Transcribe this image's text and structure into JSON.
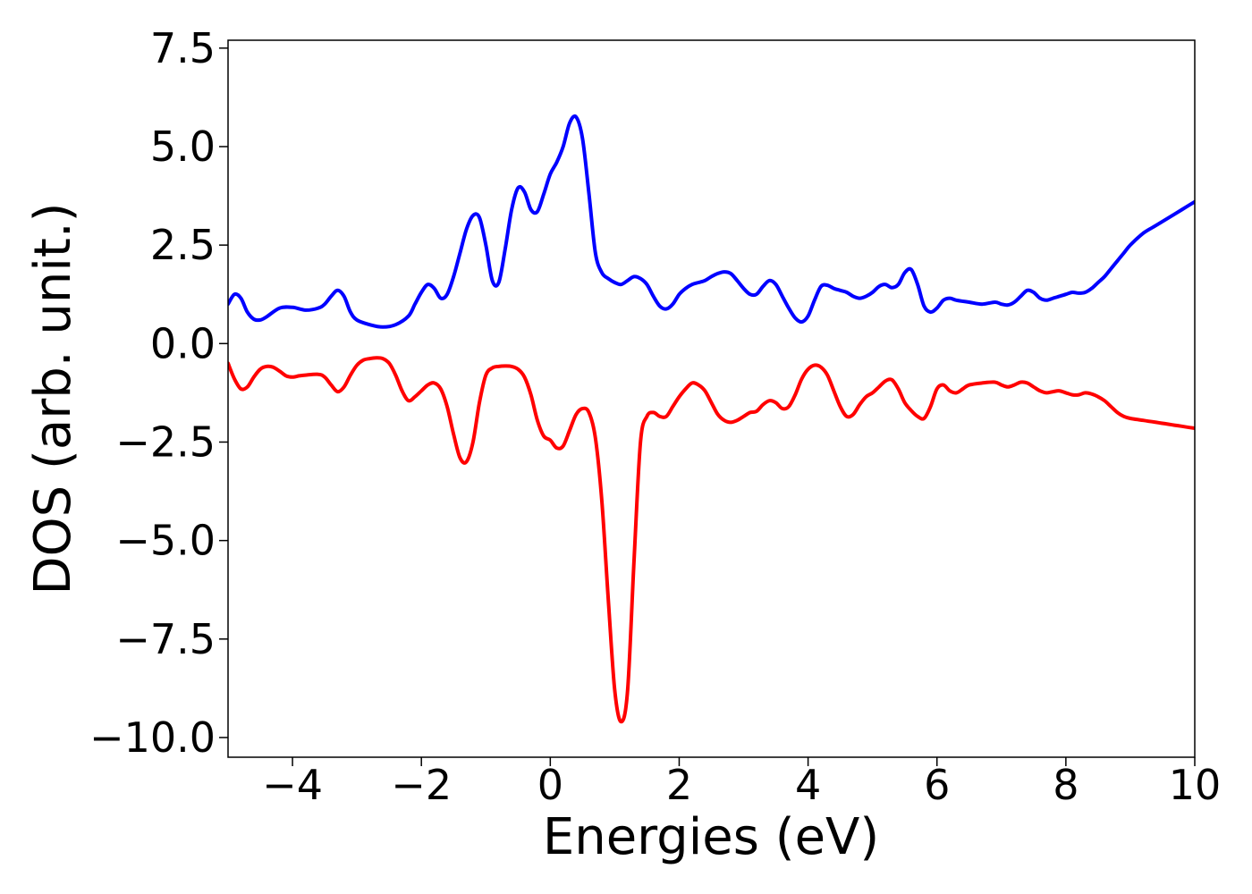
{
  "chart_data": {
    "type": "line",
    "title": "",
    "xlabel": "Energies (eV)",
    "ylabel": "DOS (arb. unit.)",
    "xlim": [
      -5,
      10
    ],
    "ylim": [
      -10.5,
      7.7
    ],
    "grid": false,
    "legend": "none",
    "x_ticks": [
      -4,
      -2,
      0,
      2,
      4,
      6,
      8,
      10
    ],
    "x_tick_labels": [
      "−4",
      "−2",
      "0",
      "2",
      "4",
      "6",
      "8",
      "10"
    ],
    "y_ticks": [
      7.5,
      5.0,
      2.5,
      0.0,
      -2.5,
      -5.0,
      -7.5,
      -10.0
    ],
    "y_tick_labels": [
      "7.5",
      "5.0",
      "2.5",
      "0.0",
      "−2.5",
      "−5.0",
      "−7.5",
      "−10.0"
    ],
    "series": [
      {
        "color": "#0000ff",
        "points": [
          [
            -5.0,
            1.0
          ],
          [
            -4.9,
            1.25
          ],
          [
            -4.8,
            1.15
          ],
          [
            -4.7,
            0.8
          ],
          [
            -4.6,
            0.62
          ],
          [
            -4.5,
            0.6
          ],
          [
            -4.4,
            0.68
          ],
          [
            -4.2,
            0.9
          ],
          [
            -4.0,
            0.92
          ],
          [
            -3.8,
            0.85
          ],
          [
            -3.6,
            0.9
          ],
          [
            -3.5,
            1.0
          ],
          [
            -3.4,
            1.2
          ],
          [
            -3.3,
            1.35
          ],
          [
            -3.2,
            1.2
          ],
          [
            -3.1,
            0.8
          ],
          [
            -3.0,
            0.6
          ],
          [
            -2.8,
            0.48
          ],
          [
            -2.6,
            0.42
          ],
          [
            -2.4,
            0.48
          ],
          [
            -2.2,
            0.7
          ],
          [
            -2.1,
            1.0
          ],
          [
            -2.0,
            1.3
          ],
          [
            -1.9,
            1.5
          ],
          [
            -1.8,
            1.4
          ],
          [
            -1.7,
            1.15
          ],
          [
            -1.6,
            1.25
          ],
          [
            -1.5,
            1.7
          ],
          [
            -1.4,
            2.3
          ],
          [
            -1.3,
            2.9
          ],
          [
            -1.2,
            3.25
          ],
          [
            -1.1,
            3.2
          ],
          [
            -1.0,
            2.5
          ],
          [
            -0.9,
            1.6
          ],
          [
            -0.8,
            1.55
          ],
          [
            -0.7,
            2.4
          ],
          [
            -0.6,
            3.4
          ],
          [
            -0.5,
            3.95
          ],
          [
            -0.4,
            3.85
          ],
          [
            -0.3,
            3.4
          ],
          [
            -0.2,
            3.35
          ],
          [
            -0.1,
            3.8
          ],
          [
            0.0,
            4.3
          ],
          [
            0.1,
            4.6
          ],
          [
            0.2,
            5.0
          ],
          [
            0.3,
            5.6
          ],
          [
            0.4,
            5.75
          ],
          [
            0.5,
            5.2
          ],
          [
            0.6,
            3.8
          ],
          [
            0.7,
            2.3
          ],
          [
            0.8,
            1.8
          ],
          [
            0.9,
            1.65
          ],
          [
            1.0,
            1.55
          ],
          [
            1.1,
            1.5
          ],
          [
            1.2,
            1.6
          ],
          [
            1.3,
            1.7
          ],
          [
            1.4,
            1.65
          ],
          [
            1.5,
            1.5
          ],
          [
            1.6,
            1.2
          ],
          [
            1.7,
            0.95
          ],
          [
            1.8,
            0.88
          ],
          [
            1.9,
            1.0
          ],
          [
            2.0,
            1.25
          ],
          [
            2.1,
            1.4
          ],
          [
            2.2,
            1.5
          ],
          [
            2.3,
            1.55
          ],
          [
            2.4,
            1.6
          ],
          [
            2.5,
            1.7
          ],
          [
            2.6,
            1.78
          ],
          [
            2.7,
            1.82
          ],
          [
            2.8,
            1.78
          ],
          [
            2.9,
            1.6
          ],
          [
            3.0,
            1.4
          ],
          [
            3.1,
            1.25
          ],
          [
            3.2,
            1.25
          ],
          [
            3.3,
            1.45
          ],
          [
            3.4,
            1.6
          ],
          [
            3.5,
            1.5
          ],
          [
            3.6,
            1.2
          ],
          [
            3.7,
            0.9
          ],
          [
            3.8,
            0.65
          ],
          [
            3.9,
            0.55
          ],
          [
            4.0,
            0.7
          ],
          [
            4.1,
            1.1
          ],
          [
            4.2,
            1.45
          ],
          [
            4.3,
            1.48
          ],
          [
            4.4,
            1.4
          ],
          [
            4.5,
            1.35
          ],
          [
            4.6,
            1.3
          ],
          [
            4.7,
            1.2
          ],
          [
            4.8,
            1.15
          ],
          [
            4.9,
            1.2
          ],
          [
            5.0,
            1.3
          ],
          [
            5.1,
            1.45
          ],
          [
            5.2,
            1.5
          ],
          [
            5.3,
            1.42
          ],
          [
            5.4,
            1.5
          ],
          [
            5.5,
            1.8
          ],
          [
            5.6,
            1.88
          ],
          [
            5.7,
            1.5
          ],
          [
            5.8,
            0.95
          ],
          [
            5.9,
            0.8
          ],
          [
            6.0,
            0.9
          ],
          [
            6.1,
            1.1
          ],
          [
            6.2,
            1.15
          ],
          [
            6.3,
            1.1
          ],
          [
            6.5,
            1.05
          ],
          [
            6.7,
            1.0
          ],
          [
            6.9,
            1.05
          ],
          [
            7.0,
            1.0
          ],
          [
            7.1,
            0.98
          ],
          [
            7.2,
            1.05
          ],
          [
            7.3,
            1.2
          ],
          [
            7.4,
            1.35
          ],
          [
            7.5,
            1.3
          ],
          [
            7.6,
            1.15
          ],
          [
            7.7,
            1.1
          ],
          [
            7.8,
            1.15
          ],
          [
            7.9,
            1.2
          ],
          [
            8.0,
            1.25
          ],
          [
            8.1,
            1.3
          ],
          [
            8.2,
            1.28
          ],
          [
            8.3,
            1.3
          ],
          [
            8.4,
            1.4
          ],
          [
            8.5,
            1.55
          ],
          [
            8.6,
            1.7
          ],
          [
            8.7,
            1.9
          ],
          [
            8.8,
            2.1
          ],
          [
            8.9,
            2.3
          ],
          [
            9.0,
            2.5
          ],
          [
            9.2,
            2.8
          ],
          [
            9.4,
            3.0
          ],
          [
            9.6,
            3.2
          ],
          [
            9.8,
            3.4
          ],
          [
            10.0,
            3.6
          ]
        ]
      },
      {
        "color": "#ff0000",
        "points": [
          [
            -5.0,
            -0.5
          ],
          [
            -4.9,
            -0.9
          ],
          [
            -4.8,
            -1.15
          ],
          [
            -4.7,
            -1.1
          ],
          [
            -4.6,
            -0.85
          ],
          [
            -4.5,
            -0.65
          ],
          [
            -4.4,
            -0.58
          ],
          [
            -4.3,
            -0.6
          ],
          [
            -4.2,
            -0.7
          ],
          [
            -4.1,
            -0.82
          ],
          [
            -4.0,
            -0.85
          ],
          [
            -3.9,
            -0.82
          ],
          [
            -3.8,
            -0.8
          ],
          [
            -3.6,
            -0.78
          ],
          [
            -3.5,
            -0.85
          ],
          [
            -3.4,
            -1.05
          ],
          [
            -3.3,
            -1.22
          ],
          [
            -3.2,
            -1.1
          ],
          [
            -3.1,
            -0.8
          ],
          [
            -3.0,
            -0.55
          ],
          [
            -2.9,
            -0.42
          ],
          [
            -2.8,
            -0.38
          ],
          [
            -2.7,
            -0.36
          ],
          [
            -2.6,
            -0.38
          ],
          [
            -2.5,
            -0.5
          ],
          [
            -2.4,
            -0.8
          ],
          [
            -2.3,
            -1.2
          ],
          [
            -2.2,
            -1.45
          ],
          [
            -2.1,
            -1.35
          ],
          [
            -2.0,
            -1.2
          ],
          [
            -1.9,
            -1.05
          ],
          [
            -1.8,
            -1.0
          ],
          [
            -1.7,
            -1.15
          ],
          [
            -1.6,
            -1.6
          ],
          [
            -1.5,
            -2.3
          ],
          [
            -1.4,
            -2.9
          ],
          [
            -1.3,
            -3.0
          ],
          [
            -1.2,
            -2.5
          ],
          [
            -1.1,
            -1.5
          ],
          [
            -1.0,
            -0.8
          ],
          [
            -0.9,
            -0.62
          ],
          [
            -0.8,
            -0.58
          ],
          [
            -0.7,
            -0.57
          ],
          [
            -0.6,
            -0.58
          ],
          [
            -0.5,
            -0.65
          ],
          [
            -0.4,
            -0.85
          ],
          [
            -0.3,
            -1.3
          ],
          [
            -0.2,
            -1.95
          ],
          [
            -0.1,
            -2.35
          ],
          [
            0.0,
            -2.45
          ],
          [
            0.1,
            -2.65
          ],
          [
            0.2,
            -2.6
          ],
          [
            0.3,
            -2.2
          ],
          [
            0.4,
            -1.8
          ],
          [
            0.5,
            -1.65
          ],
          [
            0.6,
            -1.75
          ],
          [
            0.7,
            -2.4
          ],
          [
            0.8,
            -4.0
          ],
          [
            0.9,
            -6.5
          ],
          [
            1.0,
            -8.8
          ],
          [
            1.1,
            -9.6
          ],
          [
            1.2,
            -8.8
          ],
          [
            1.3,
            -5.5
          ],
          [
            1.4,
            -2.5
          ],
          [
            1.5,
            -1.85
          ],
          [
            1.6,
            -1.75
          ],
          [
            1.7,
            -1.85
          ],
          [
            1.8,
            -1.85
          ],
          [
            1.9,
            -1.6
          ],
          [
            2.0,
            -1.35
          ],
          [
            2.1,
            -1.15
          ],
          [
            2.2,
            -1.0
          ],
          [
            2.3,
            -1.05
          ],
          [
            2.4,
            -1.2
          ],
          [
            2.5,
            -1.5
          ],
          [
            2.6,
            -1.8
          ],
          [
            2.7,
            -1.95
          ],
          [
            2.8,
            -2.0
          ],
          [
            2.9,
            -1.95
          ],
          [
            3.0,
            -1.85
          ],
          [
            3.1,
            -1.75
          ],
          [
            3.2,
            -1.72
          ],
          [
            3.3,
            -1.55
          ],
          [
            3.4,
            -1.45
          ],
          [
            3.5,
            -1.5
          ],
          [
            3.6,
            -1.65
          ],
          [
            3.7,
            -1.6
          ],
          [
            3.8,
            -1.3
          ],
          [
            3.9,
            -0.9
          ],
          [
            4.0,
            -0.65
          ],
          [
            4.1,
            -0.55
          ],
          [
            4.2,
            -0.6
          ],
          [
            4.3,
            -0.8
          ],
          [
            4.4,
            -1.2
          ],
          [
            4.5,
            -1.6
          ],
          [
            4.6,
            -1.85
          ],
          [
            4.7,
            -1.8
          ],
          [
            4.8,
            -1.55
          ],
          [
            4.9,
            -1.35
          ],
          [
            5.0,
            -1.25
          ],
          [
            5.1,
            -1.1
          ],
          [
            5.2,
            -0.95
          ],
          [
            5.3,
            -0.92
          ],
          [
            5.4,
            -1.15
          ],
          [
            5.5,
            -1.5
          ],
          [
            5.6,
            -1.7
          ],
          [
            5.7,
            -1.85
          ],
          [
            5.8,
            -1.9
          ],
          [
            5.9,
            -1.6
          ],
          [
            6.0,
            -1.15
          ],
          [
            6.1,
            -1.05
          ],
          [
            6.2,
            -1.2
          ],
          [
            6.3,
            -1.25
          ],
          [
            6.4,
            -1.15
          ],
          [
            6.5,
            -1.05
          ],
          [
            6.7,
            -1.0
          ],
          [
            6.9,
            -0.98
          ],
          [
            7.0,
            -1.05
          ],
          [
            7.1,
            -1.1
          ],
          [
            7.2,
            -1.05
          ],
          [
            7.3,
            -0.98
          ],
          [
            7.4,
            -1.0
          ],
          [
            7.5,
            -1.1
          ],
          [
            7.6,
            -1.2
          ],
          [
            7.7,
            -1.25
          ],
          [
            7.8,
            -1.22
          ],
          [
            7.9,
            -1.2
          ],
          [
            8.0,
            -1.25
          ],
          [
            8.1,
            -1.3
          ],
          [
            8.2,
            -1.3
          ],
          [
            8.3,
            -1.25
          ],
          [
            8.4,
            -1.28
          ],
          [
            8.5,
            -1.35
          ],
          [
            8.6,
            -1.45
          ],
          [
            8.7,
            -1.6
          ],
          [
            8.8,
            -1.75
          ],
          [
            8.9,
            -1.85
          ],
          [
            9.0,
            -1.9
          ],
          [
            9.2,
            -1.95
          ],
          [
            9.4,
            -2.0
          ],
          [
            9.6,
            -2.05
          ],
          [
            9.8,
            -2.1
          ],
          [
            10.0,
            -2.15
          ]
        ]
      }
    ]
  }
}
